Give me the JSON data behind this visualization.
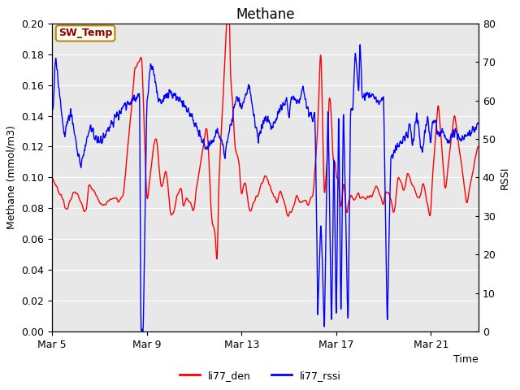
{
  "title": "Methane",
  "ylabel_left": "Methane (mmol/m3)",
  "ylabel_right": "RSSI",
  "xlabel": "Time",
  "annotation": "SW_Temp",
  "legend": [
    "li77_den",
    "li77_rssi"
  ],
  "colors": [
    "red",
    "blue"
  ],
  "ylim_left": [
    0.0,
    0.2
  ],
  "ylim_right": [
    0,
    80
  ],
  "yticks_left": [
    0.0,
    0.02,
    0.04,
    0.06,
    0.08,
    0.1,
    0.12,
    0.14,
    0.16,
    0.18,
    0.2
  ],
  "yticks_right": [
    0,
    10,
    20,
    30,
    40,
    50,
    60,
    70,
    80
  ],
  "xtick_labels": [
    "Mar 5",
    "Mar 9",
    "Mar 13",
    "Mar 17",
    "Mar 21"
  ],
  "xtick_positions": [
    0,
    4,
    8,
    12,
    16
  ],
  "xlim": [
    0,
    18
  ],
  "plot_bg_color": "#e8e8e8",
  "grid_color": "#ffffff",
  "annotation_bg": "#fffff0",
  "annotation_border": "#b8860b",
  "annotation_text_color": "#8b0000",
  "title_fontsize": 12,
  "label_fontsize": 9,
  "tick_fontsize": 9,
  "linewidth": 1.0
}
